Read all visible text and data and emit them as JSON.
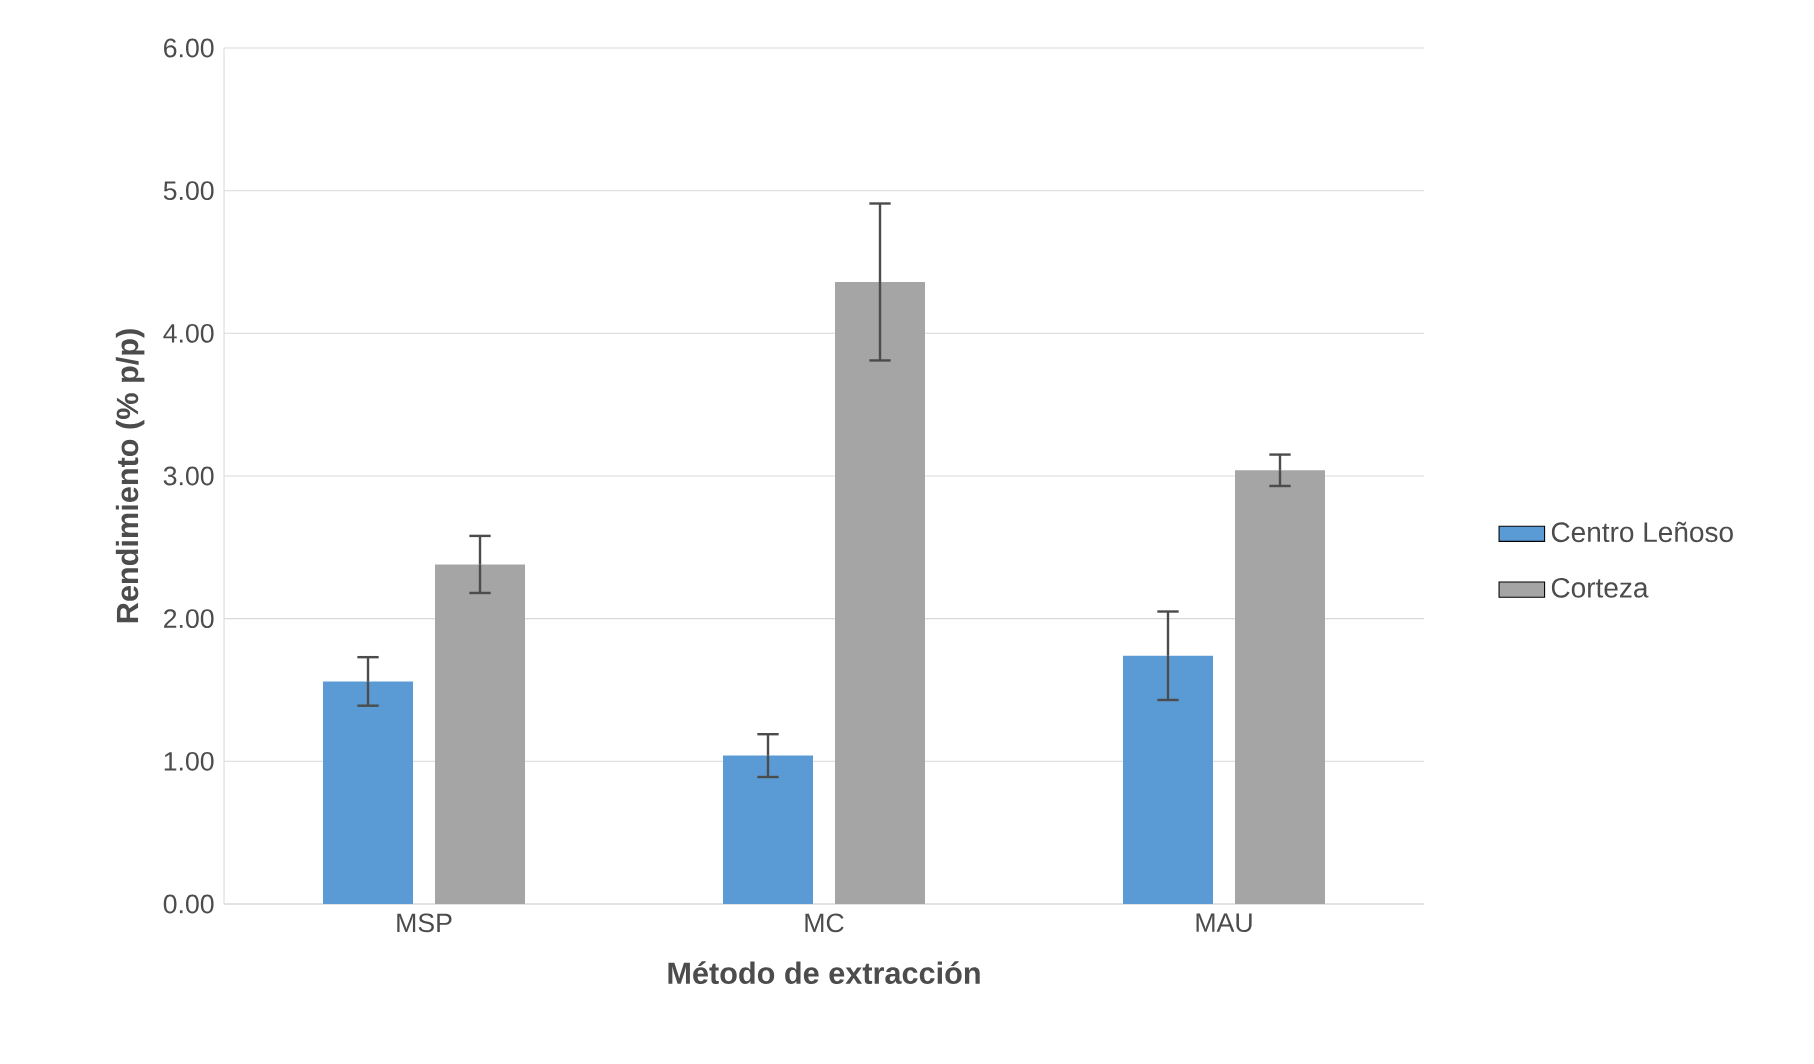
{
  "chart_data": {
    "type": "bar",
    "xlabel": "Método de extracción",
    "ylabel": "Rendimiento (% p/p)",
    "categories": [
      "MSP",
      "MC",
      "MAU"
    ],
    "series": [
      {
        "name": "Centro Leñoso",
        "color": "#5b9bd5",
        "values": [
          1.56,
          1.04,
          1.74
        ],
        "errors": [
          0.17,
          0.15,
          0.31
        ]
      },
      {
        "name": "Corteza",
        "color": "#a5a5a5",
        "values": [
          2.38,
          4.36,
          3.04
        ],
        "errors": [
          0.2,
          0.55,
          0.11
        ]
      }
    ],
    "ylim": [
      0,
      6
    ],
    "yticks": [
      {
        "value": 0,
        "label": "0.00"
      },
      {
        "value": 1,
        "label": "1.00"
      },
      {
        "value": 2,
        "label": "2.00"
      },
      {
        "value": 3,
        "label": "3.00"
      },
      {
        "value": 4,
        "label": "4.00"
      },
      {
        "value": 5,
        "label": "5.00"
      },
      {
        "value": 6,
        "label": "6.00"
      }
    ],
    "grid": "y",
    "legend": "right"
  }
}
